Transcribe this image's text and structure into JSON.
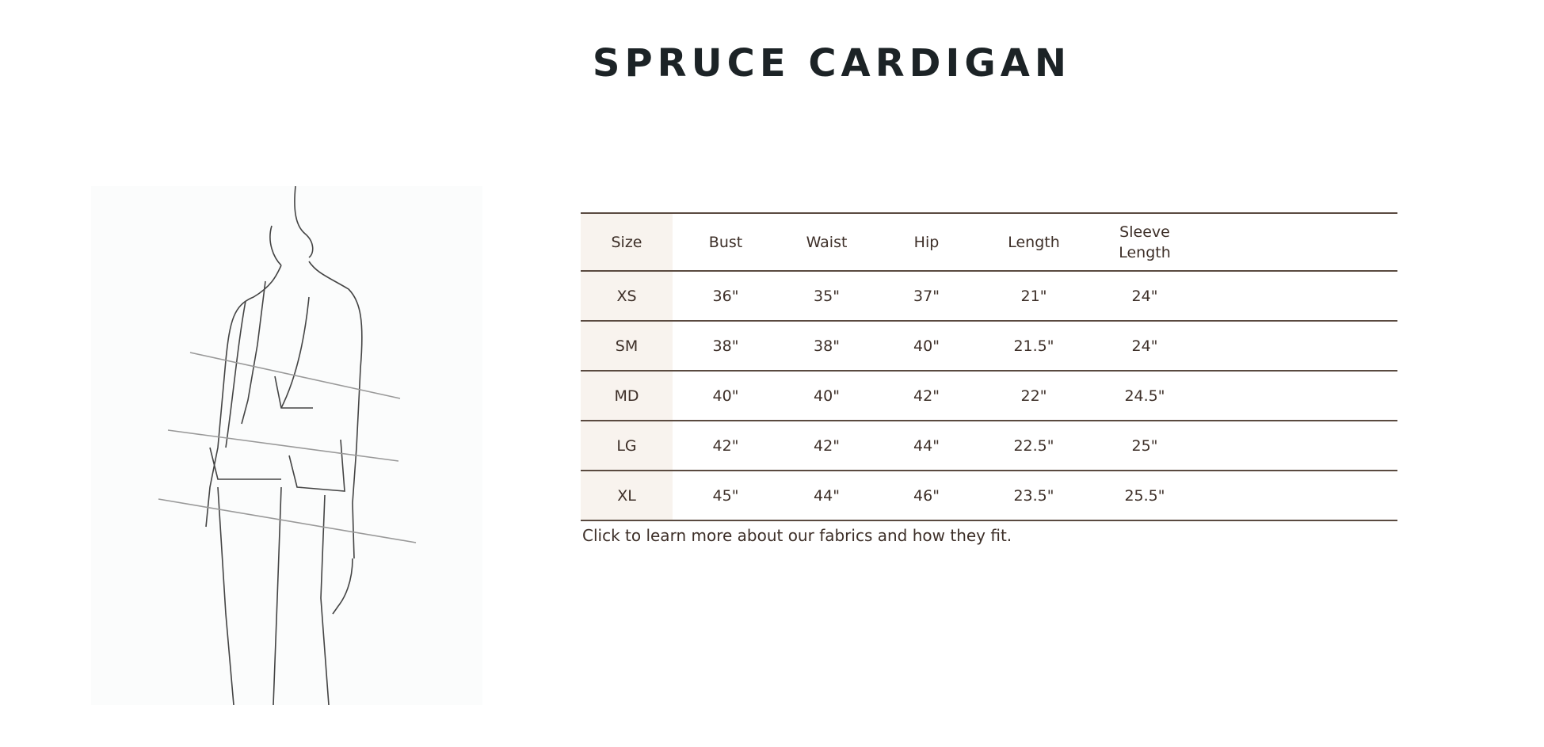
{
  "title": "SPRUCE CARDIGAN",
  "table": {
    "headers": [
      "Size",
      "Bust",
      "Waist",
      "Hip",
      "Length",
      "Sleeve\nLength"
    ],
    "rows": [
      [
        "XS",
        "36\"",
        "35\"",
        "37\"",
        "21\"",
        "24\""
      ],
      [
        "SM",
        "38\"",
        "38\"",
        "40\"",
        "21.5\"",
        "24\""
      ],
      [
        "MD",
        "40\"",
        "40\"",
        "42\"",
        "22\"",
        "24.5\""
      ],
      [
        "LG",
        "42\"",
        "42\"",
        "44\"",
        "22.5\"",
        "25\""
      ],
      [
        "XL",
        "45\"",
        "44\"",
        "46\"",
        "23.5\"",
        "25.5\""
      ]
    ]
  },
  "note": "Click to learn more about our fabrics and how they fit.",
  "colors": {
    "rule": "#5a4a40",
    "size_column_bg": "#f8f3ee",
    "text": "#3d2f28",
    "title": "#1c2326"
  }
}
